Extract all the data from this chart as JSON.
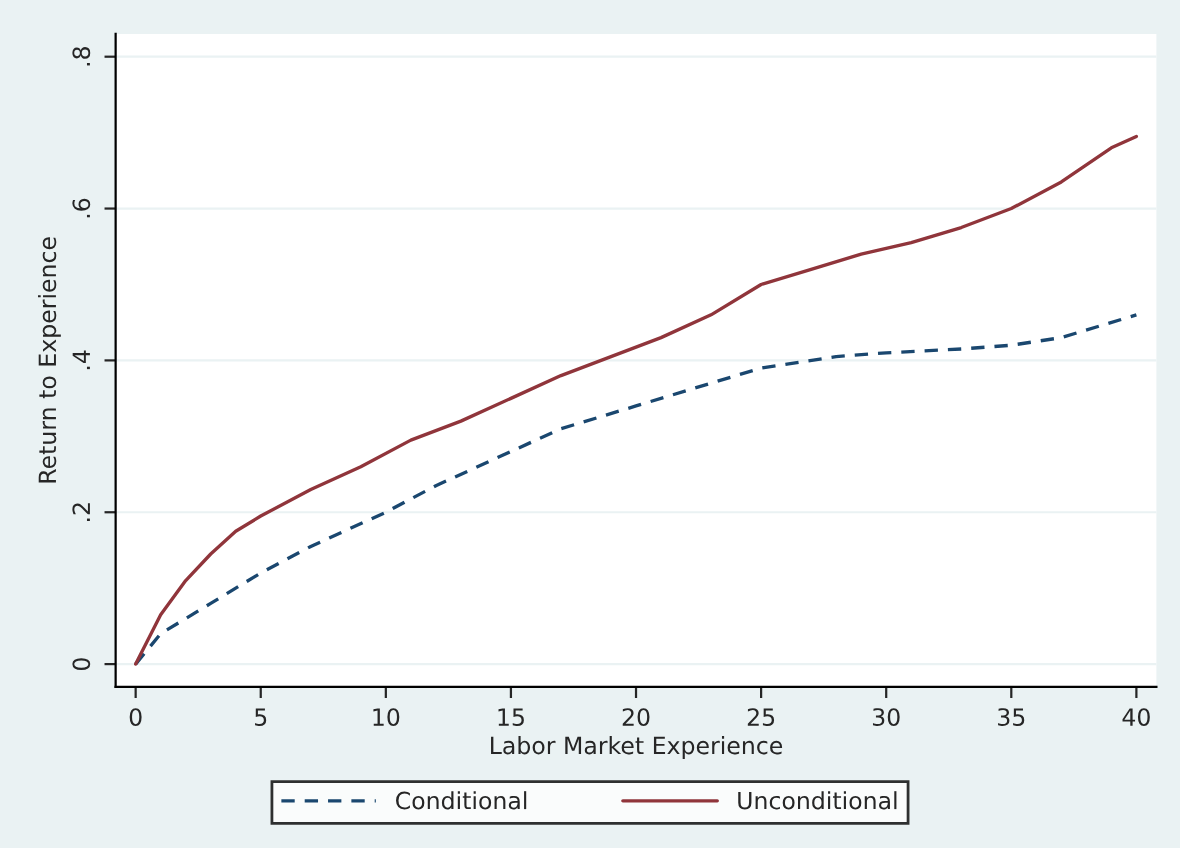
{
  "chart_data": {
    "type": "line",
    "xlabel": "Labor Market Experience",
    "ylabel": "Return to Experience",
    "xlim": [
      -0.8,
      40.8
    ],
    "ylim": [
      -0.03,
      0.83
    ],
    "xticks": [
      0,
      5,
      10,
      15,
      20,
      25,
      30,
      35,
      40
    ],
    "yticks": [
      {
        "value": 0,
        "label": "0"
      },
      {
        "value": 0.2,
        "label": ".2"
      },
      {
        "value": 0.4,
        "label": ".4"
      },
      {
        "value": 0.6,
        "label": ".6"
      },
      {
        "value": 0.8,
        "label": ".8"
      }
    ],
    "grid": "y",
    "legend": "bottom",
    "marker": "none",
    "series": [
      {
        "name": "Conditional",
        "color": "#1a476f",
        "line_style": "dashed",
        "x": [
          0,
          1,
          3,
          5,
          7,
          10,
          12,
          15,
          17,
          20,
          22,
          25,
          28,
          30,
          33,
          35,
          37,
          40
        ],
        "values": [
          0,
          0.04,
          0.08,
          0.12,
          0.155,
          0.2,
          0.235,
          0.28,
          0.31,
          0.34,
          0.36,
          0.39,
          0.405,
          0.41,
          0.415,
          0.42,
          0.43,
          0.46
        ]
      },
      {
        "name": "Unconditional",
        "color": "#90353b",
        "line_style": "solid",
        "x": [
          0,
          1,
          2,
          3,
          4,
          5,
          7,
          9,
          11,
          13,
          15,
          17,
          19,
          21,
          23,
          25,
          27,
          29,
          31,
          33,
          35,
          37,
          39,
          40
        ],
        "values": [
          0,
          0.065,
          0.11,
          0.145,
          0.175,
          0.195,
          0.23,
          0.26,
          0.295,
          0.32,
          0.35,
          0.38,
          0.405,
          0.43,
          0.46,
          0.5,
          0.52,
          0.54,
          0.555,
          0.575,
          0.6,
          0.635,
          0.68,
          0.695
        ]
      }
    ]
  }
}
